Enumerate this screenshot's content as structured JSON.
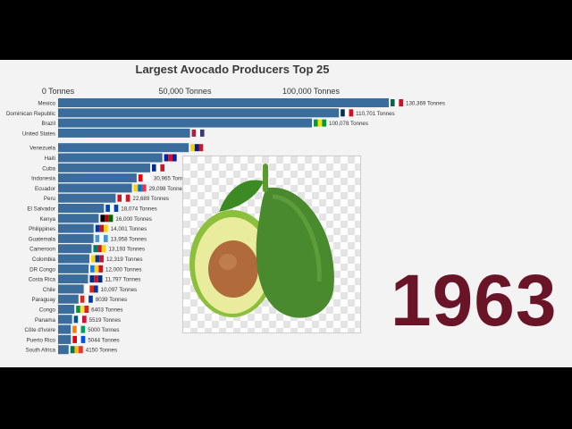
{
  "title": "Largest Avocado Producers Top 25",
  "year": "1963",
  "colors": {
    "bar": "#3a6d9c",
    "year": "#6a1428",
    "background": "#f3f3f3"
  },
  "photo_subject": "avocado-image",
  "chart_data": {
    "type": "bar",
    "orientation": "horizontal",
    "title": "Largest Avocado Producers Top 25",
    "x_ticks": [
      "0 Tonnes",
      "50,000 Tonnes",
      "100,000 Tonnes"
    ],
    "xlim": [
      0,
      130369
    ],
    "categories": [
      "Mexico",
      "Dominican Republic",
      "Brazil",
      "United States",
      "Venezuela",
      "Haiti",
      "Cuba",
      "Indonesia",
      "Ecuador",
      "Peru",
      "El Salvador",
      "Kenya",
      "Philippines",
      "Guatemala",
      "Cameroon",
      "Colombia",
      "DR Congo",
      "Costa Rica",
      "Chile",
      "Paraguay",
      "Congo",
      "Panama",
      "Côte d'Ivoire",
      "Puerto Rico",
      "South Africa"
    ],
    "values": [
      130369,
      110701,
      100078,
      52000,
      51500,
      41100,
      36300,
      30965,
      29098,
      22689,
      18074,
      16000,
      14001,
      13958,
      13193,
      12319,
      12000,
      11797,
      10097,
      8039,
      6403,
      5519,
      5000,
      5044,
      4150
    ],
    "value_labels": [
      "130,369 Tonnes",
      "110,701 Tonnes",
      "100,078 Tonnes",
      "",
      "",
      "",
      "",
      "30,965 Tonnes",
      "29,098 Tonnes",
      "22,689 Tonnes",
      "18,074 Tonnes",
      "16,000 Tonnes",
      "14,001 Tonnes",
      "13,958 Tonnes",
      "13,193 Tonnes",
      "12,319 Tonnes",
      "12,000 Tonnes",
      "11,797 Tonnes",
      "10,097 Tonnes",
      "8039 Tonnes",
      "6403 Tonnes",
      "5519 Tonnes",
      "5000 Tonnes",
      "5044 Tonnes",
      "4150 Tonnes"
    ],
    "flags": [
      [
        "#006847",
        "#ffffff",
        "#ce1126"
      ],
      [
        "#002d62",
        "#ffffff",
        "#ce1126"
      ],
      [
        "#009c3b",
        "#ffdf00",
        "#009c3b"
      ],
      [
        "#b22234",
        "#ffffff",
        "#3c3b6e"
      ],
      [
        "#ffcc00",
        "#00247d",
        "#cf142b"
      ],
      [
        "#00209f",
        "#d21034",
        "#00209f"
      ],
      [
        "#002a8f",
        "#ffffff",
        "#cf142b"
      ],
      [
        "#ff0000",
        "#ffffff",
        "#ffffff"
      ],
      [
        "#ffd100",
        "#0072ce",
        "#ef3340"
      ],
      [
        "#d91023",
        "#ffffff",
        "#d91023"
      ],
      [
        "#0047ab",
        "#ffffff",
        "#0047ab"
      ],
      [
        "#000000",
        "#bb0000",
        "#006600"
      ],
      [
        "#0038a8",
        "#ce1126",
        "#fcd116"
      ],
      [
        "#4997d0",
        "#ffffff",
        "#4997d0"
      ],
      [
        "#007a5e",
        "#ce1126",
        "#fcd116"
      ],
      [
        "#fcd116",
        "#003893",
        "#ce1126"
      ],
      [
        "#007fff",
        "#f7d618",
        "#ce1021"
      ],
      [
        "#002b7f",
        "#ce1126",
        "#002b7f"
      ],
      [
        "#ffffff",
        "#d52b1e",
        "#0039a6"
      ],
      [
        "#d52b1e",
        "#ffffff",
        "#0038a8"
      ],
      [
        "#009543",
        "#fbde4a",
        "#dc241f"
      ],
      [
        "#005293",
        "#ffffff",
        "#d21034"
      ],
      [
        "#f77f00",
        "#ffffff",
        "#009e60"
      ],
      [
        "#ed0000",
        "#ffffff",
        "#0050f0"
      ],
      [
        "#007749",
        "#ffb612",
        "#de3831"
      ]
    ]
  }
}
